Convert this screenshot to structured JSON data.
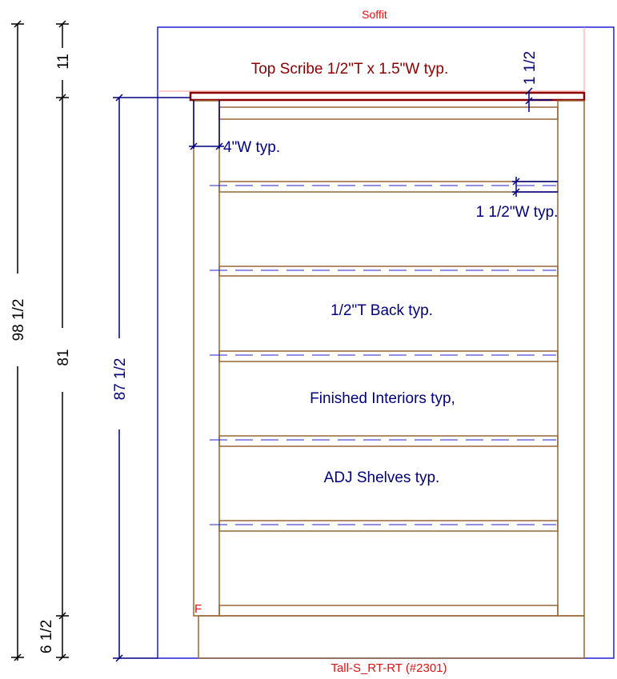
{
  "drawing": {
    "soffit_label": "Soffit",
    "cabinet_id": "Tall-S_RT-RT (#2301)",
    "finish_marker": "F"
  },
  "notes": {
    "top_scribe": "Top Scribe 1/2\"T x 1.5\"W typ.",
    "stile_width": "4\"W typ.",
    "shelf_edge": "1 1/2\"W typ.",
    "back": "1/2\"T Back typ.",
    "interiors": "Finished Interiors typ,",
    "shelves": "ADJ Shelves typ."
  },
  "dimensions": {
    "overall_height": "98 1/2",
    "top_gap": "11",
    "cabinet_body": "81",
    "toe_kick": "6 1/2",
    "box_height": "87 1/2",
    "scribe_thickness": "1 1/2"
  },
  "colors": {
    "soffit": "#1f1fd6",
    "cabinet": "#996633",
    "scribe": "#8b0000",
    "dimension": "#000080",
    "label_red": "#e01010",
    "shelf_dash": "#2020d0"
  }
}
